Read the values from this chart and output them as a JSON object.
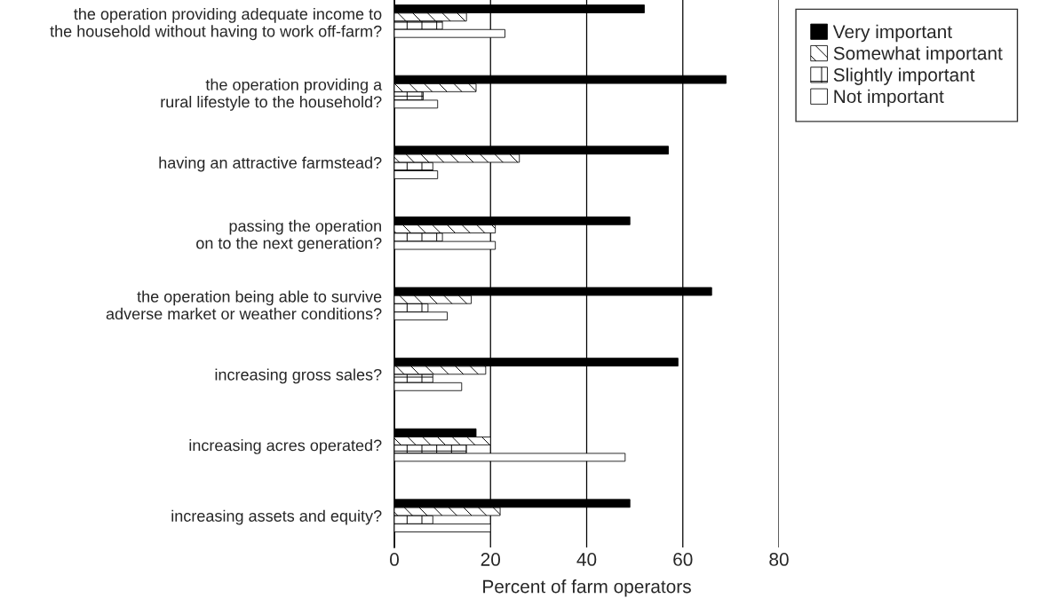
{
  "chart_data": {
    "type": "bar",
    "orientation": "horizontal",
    "xlabel": "Percent of farm operators",
    "categories": [
      "the operation providing adequate income to\nthe household without having to work off-farm?",
      "the operation providing a\nrural lifestyle to the household?",
      "having an attractive farmstead?",
      "passing the operation\non to the next generation?",
      "the operation being able to survive\nadverse market or weather conditions?",
      "increasing gross sales?",
      "increasing acres operated?",
      "increasing assets and equity?"
    ],
    "series": [
      {
        "name": "Very important",
        "color": "#000000",
        "values": [
          52,
          69,
          57,
          49,
          66,
          59,
          17,
          49
        ]
      },
      {
        "name": "Somewhat important",
        "color": "#000000",
        "values": [
          15,
          17,
          26,
          21,
          16,
          19,
          20,
          22
        ]
      },
      {
        "name": "Slightly important",
        "color": "#000000",
        "values": [
          10,
          6,
          8,
          10,
          7,
          8,
          15,
          8
        ]
      },
      {
        "name": "Not important",
        "color": "#ffffff",
        "values": [
          23,
          9,
          9,
          21,
          11,
          14,
          48,
          20
        ]
      }
    ],
    "xlim": [
      0,
      80
    ],
    "xticks": [
      0,
      20,
      40,
      60,
      80
    ],
    "grid": "x",
    "legend": "top right"
  }
}
